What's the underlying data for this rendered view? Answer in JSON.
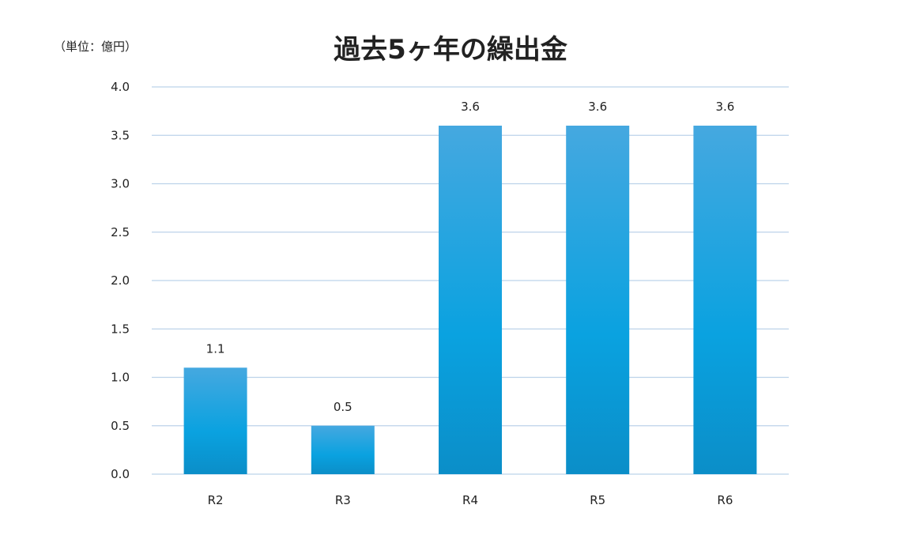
{
  "chart_data": {
    "type": "bar",
    "title": "過去5ヶ年の繰出金",
    "unit_label": "（単位：億円）",
    "categories": [
      "R2",
      "R3",
      "R4",
      "R5",
      "R6"
    ],
    "values": [
      1.1,
      0.5,
      3.6,
      3.6,
      3.6
    ],
    "data_labels": [
      "1.1",
      "0.5",
      "3.6",
      "3.6",
      "3.6"
    ],
    "ylim": [
      0,
      4.0
    ],
    "yticks": [
      "0.0",
      "0.5",
      "1.0",
      "1.5",
      "2.0",
      "2.5",
      "3.0",
      "3.5",
      "4.0"
    ],
    "grid": true,
    "legend": "none",
    "colors": {
      "bar_top": "#45a8e0",
      "bar_mid": "#0aa2e0",
      "bar_bottom": "#0b8ec8",
      "grid": "#bcd3ea"
    }
  }
}
